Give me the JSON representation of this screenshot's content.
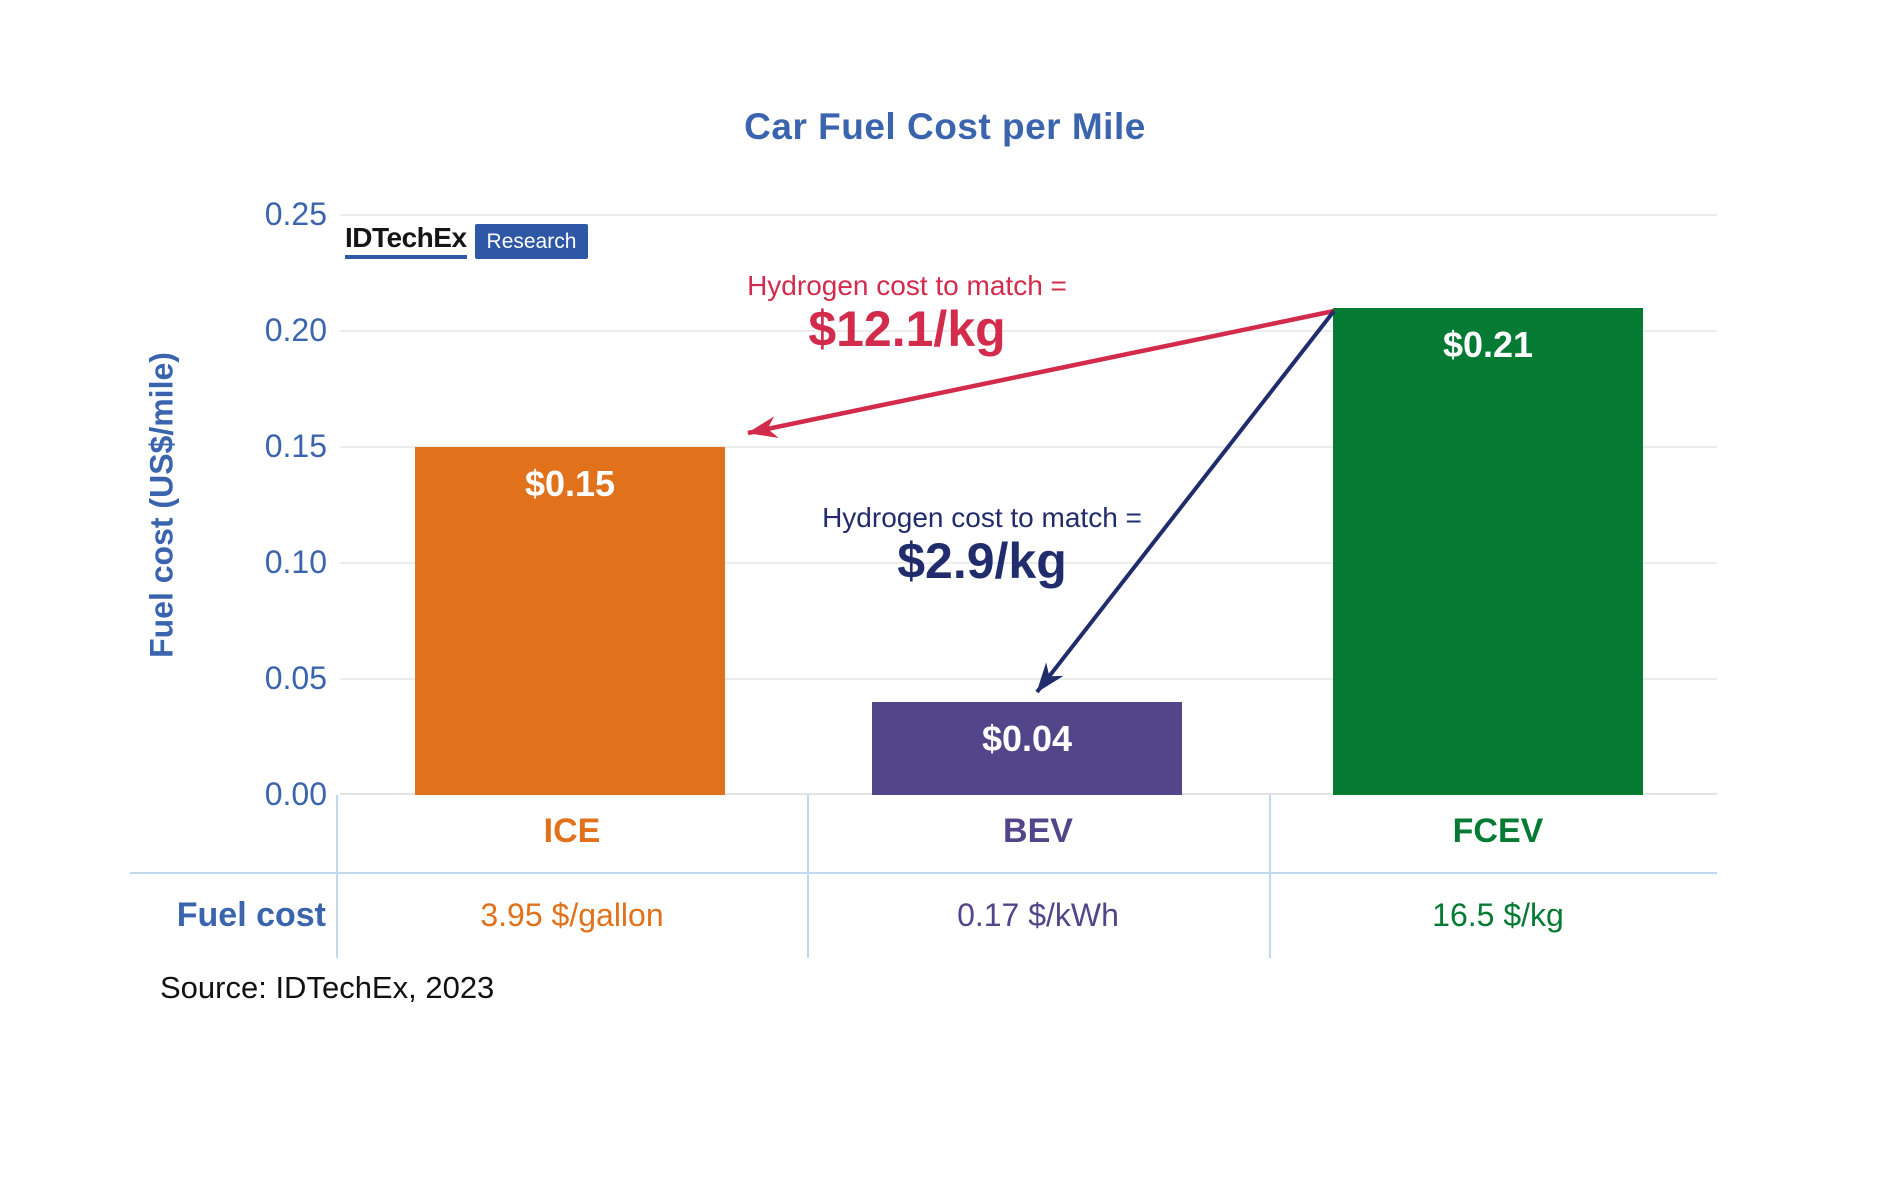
{
  "title": "Car Fuel Cost per Mile",
  "logo": {
    "brand": "IDTechEx",
    "suffix": "Research"
  },
  "source": "Source: IDTechEx, 2023",
  "colors": {
    "axis_blue": "#3A65AE",
    "ice_orange": "#E2711B",
    "bev_purple": "#52458A",
    "fcev_green": "#057A33",
    "annotation_red": "#D22B4B",
    "annotation_navy": "#202C6B",
    "gridline": "#ECECEC",
    "table_border": "#BFD9F0",
    "logo_blue": "#2E57A5"
  },
  "chart_data": {
    "type": "bar",
    "title": "Car Fuel Cost per Mile",
    "xlabel": "",
    "ylabel": "Fuel cost (US$/mile)",
    "ylim": [
      0,
      0.25
    ],
    "ytick_step": 0.05,
    "yticks": [
      "0.25",
      "0.20",
      "0.15",
      "0.10",
      "0.05",
      "0.00"
    ],
    "grid": true,
    "legend": "none",
    "categories": [
      "ICE",
      "BEV",
      "FCEV"
    ],
    "values": [
      0.15,
      0.04,
      0.21
    ],
    "bar_labels": [
      "$0.15",
      "$0.04",
      "$0.21"
    ],
    "bar_colors": [
      "#E2711B",
      "#52458A",
      "#057A33"
    ],
    "annotations": [
      {
        "text": "Hydrogen cost to match =",
        "value": "$12.1/kg",
        "color": "#D22B4B",
        "from": "FCEV",
        "to": "ICE"
      },
      {
        "text": "Hydrogen cost to match =",
        "value": "$2.9/kg",
        "color": "#202C6B",
        "from": "FCEV",
        "to": "BEV"
      }
    ],
    "fuel_cost_row": {
      "label": "Fuel cost",
      "values": [
        "3.95 $/gallon",
        "0.17 $/kWh",
        "16.5 $/kg"
      ]
    }
  }
}
